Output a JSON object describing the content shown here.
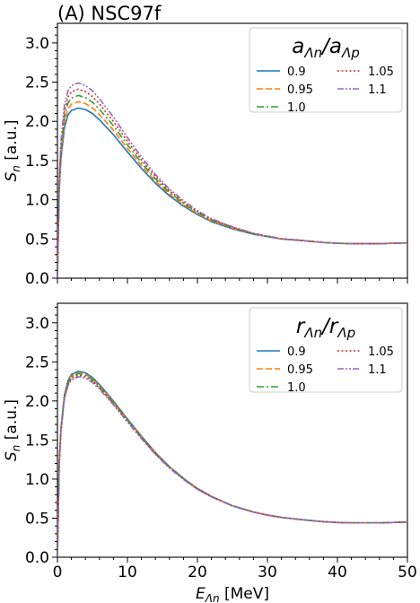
{
  "figure": {
    "title": "(A) NSC97f"
  },
  "chart_data": [
    {
      "type": "line",
      "legend_title_main": "a",
      "legend_title_sub1": "Λn",
      "legend_title_sep": "/a",
      "legend_title_sub2": "Λp",
      "legend_placement": "top-right",
      "ylabel_main": "S",
      "ylabel_sub": "n",
      "ylabel_unit": " [a.u.]",
      "xlim": [
        0,
        50
      ],
      "ylim": [
        0,
        3.25
      ],
      "xticks": [
        0,
        10,
        20,
        30,
        40,
        50
      ],
      "yticks": [
        "0.0",
        "0.5",
        "1.0",
        "1.5",
        "2.0",
        "2.5",
        "3.0"
      ],
      "grid": false,
      "series": [
        {
          "name": "0.9",
          "peak": 2.17,
          "color": "#1f77b4",
          "dash": "solid"
        },
        {
          "name": "0.95",
          "peak": 2.25,
          "color": "#ff7f0e",
          "dash": "dashed"
        },
        {
          "name": "1.0",
          "peak": 2.33,
          "color": "#2ca02c",
          "dash": "dashdot"
        },
        {
          "name": "1.05",
          "peak": 2.41,
          "color": "#d62728",
          "dash": "dotted"
        },
        {
          "name": "1.1",
          "peak": 2.49,
          "color": "#9467bd",
          "dash": "dashdotdot"
        }
      ],
      "peak_x": 3.0,
      "x_samples": [
        0,
        0.25,
        0.5,
        1,
        1.5,
        2,
        3,
        4,
        5,
        6,
        8,
        10,
        12,
        14,
        16,
        18,
        20,
        22,
        25,
        28,
        30,
        32,
        35,
        38,
        40,
        42,
        44,
        46,
        48,
        50
      ],
      "base_values": [
        0,
        1.1,
        1.52,
        1.92,
        2.08,
        2.14,
        2.17,
        2.15,
        2.1,
        2.02,
        1.83,
        1.61,
        1.4,
        1.21,
        1.05,
        0.92,
        0.81,
        0.72,
        0.63,
        0.56,
        0.53,
        0.5,
        0.48,
        0.455,
        0.445,
        0.44,
        0.44,
        0.44,
        0.445,
        0.45
      ]
    },
    {
      "type": "line",
      "legend_title_main": "r",
      "legend_title_sub1": "Λn",
      "legend_title_sep": "/r",
      "legend_title_sub2": "Λp",
      "legend_placement": "top-right",
      "ylabel_main": "S",
      "ylabel_sub": "n",
      "ylabel_unit": " [a.u.]",
      "xlabel_main": "E",
      "xlabel_sub": "Λn",
      "xlabel_unit": " [MeV]",
      "xlim": [
        0,
        50
      ],
      "ylim": [
        0,
        3.25
      ],
      "xticks": [
        0,
        10,
        20,
        30,
        40,
        50
      ],
      "yticks": [
        "0.0",
        "0.5",
        "1.0",
        "1.5",
        "2.0",
        "2.5",
        "3.0"
      ],
      "grid": false,
      "series": [
        {
          "name": "0.9",
          "peak": 2.38,
          "color": "#1f77b4",
          "dash": "solid"
        },
        {
          "name": "0.95",
          "peak": 2.36,
          "color": "#ff7f0e",
          "dash": "dashed"
        },
        {
          "name": "1.0",
          "peak": 2.35,
          "color": "#2ca02c",
          "dash": "dashdot"
        },
        {
          "name": "1.05",
          "peak": 2.33,
          "color": "#d62728",
          "dash": "dotted"
        },
        {
          "name": "1.1",
          "peak": 2.31,
          "color": "#9467bd",
          "dash": "dashdotdot"
        }
      ],
      "peak_x": 3.0,
      "x_samples": [
        0,
        0.25,
        0.5,
        1,
        1.5,
        2,
        3,
        4,
        5,
        6,
        8,
        10,
        12,
        14,
        16,
        18,
        20,
        22,
        25,
        28,
        30,
        32,
        35,
        38,
        40,
        42,
        44,
        46,
        48,
        50
      ],
      "base_values": [
        0,
        1.2,
        1.65,
        2.08,
        2.26,
        2.34,
        2.38,
        2.36,
        2.3,
        2.21,
        2.0,
        1.77,
        1.55,
        1.34,
        1.16,
        1.01,
        0.88,
        0.78,
        0.66,
        0.58,
        0.54,
        0.51,
        0.48,
        0.455,
        0.445,
        0.44,
        0.44,
        0.44,
        0.445,
        0.45
      ]
    }
  ]
}
